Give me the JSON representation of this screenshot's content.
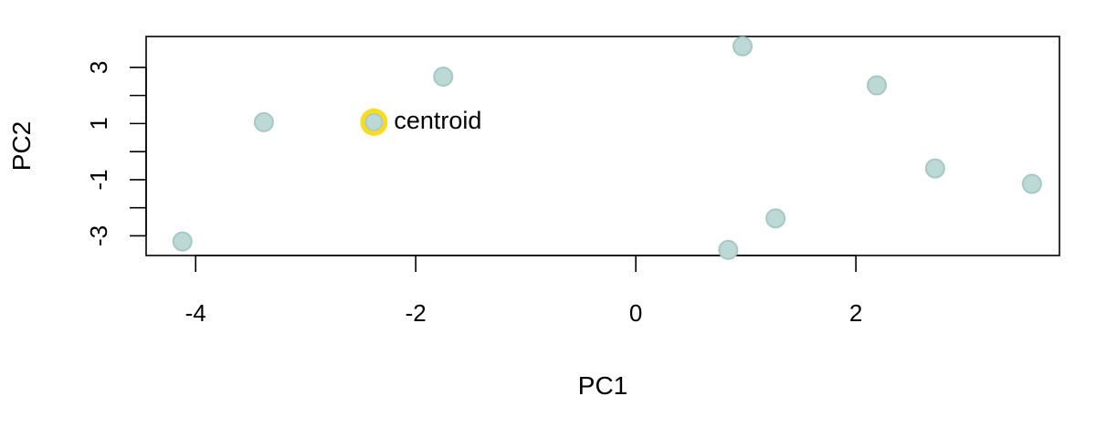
{
  "chart_data": {
    "type": "scatter",
    "title": "",
    "xlabel": "PC1",
    "ylabel": "PC2",
    "xlim": [
      -4.45,
      3.85
    ],
    "ylim": [
      -3.7,
      4.1
    ],
    "x_ticks": [
      -4,
      -2,
      0,
      2
    ],
    "y_ticks": [
      -3,
      -2,
      -1,
      0,
      1,
      2,
      3
    ],
    "y_tick_labels": [
      "-3",
      "",
      "-1",
      "",
      "1",
      "",
      "3"
    ],
    "grid": false,
    "legend": "none",
    "point_color": "#bcd9d5",
    "point_edge_color": "#a6c8c4",
    "series": [
      {
        "points": [
          {
            "x": -4.12,
            "y": -3.2
          },
          {
            "x": -3.38,
            "y": 1.05
          },
          {
            "x": -1.75,
            "y": 2.67
          },
          {
            "x": 0.97,
            "y": 3.75
          },
          {
            "x": 2.19,
            "y": 2.36
          },
          {
            "x": 2.72,
            "y": -0.6
          },
          {
            "x": 3.6,
            "y": -1.15
          },
          {
            "x": 1.27,
            "y": -2.38
          },
          {
            "x": 0.84,
            "y": -3.5
          }
        ]
      }
    ],
    "annotations": [
      {
        "x": -2.38,
        "y": 1.05,
        "label": "centroid",
        "highlight_color": "#f7dc1f"
      }
    ]
  }
}
